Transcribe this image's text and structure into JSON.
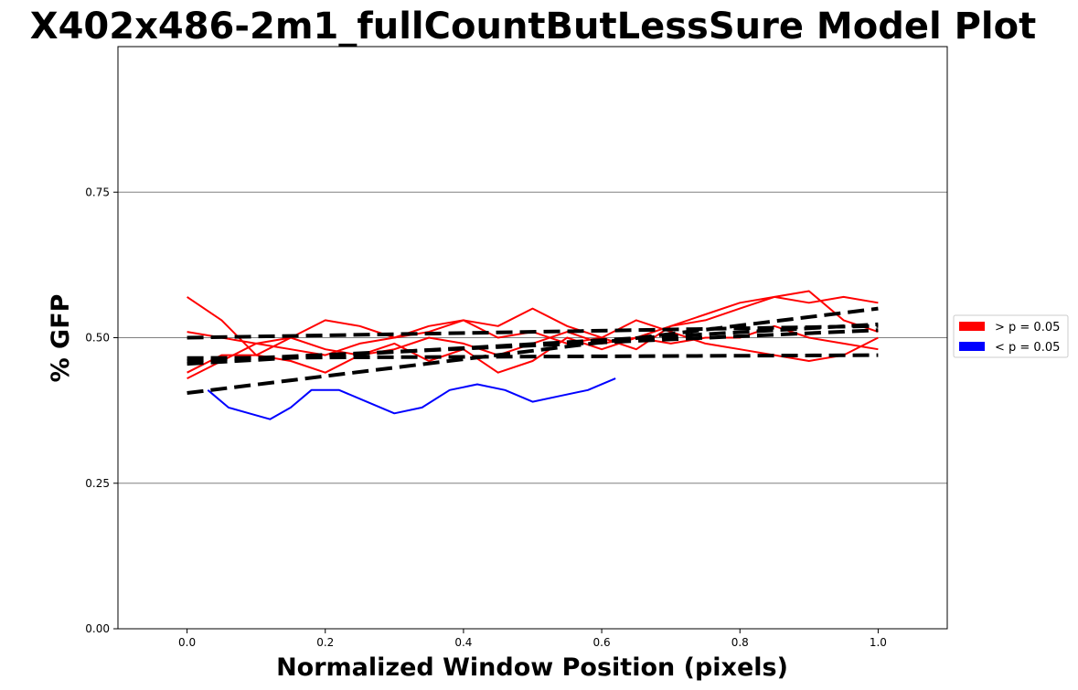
{
  "chart_data": {
    "type": "line",
    "title": "X402x486-2m1_fullCountButLessSure Model Plot",
    "xlabel": "Normalized Window Position (pixels)",
    "ylabel": "% GFP",
    "xlim": [
      -0.1,
      1.1
    ],
    "ylim": [
      0.0,
      1.0
    ],
    "xticks": [
      0.0,
      0.2,
      0.4,
      0.6,
      0.8,
      1.0
    ],
    "xtick_labels": [
      "0.0",
      "0.2",
      "0.4",
      "0.6",
      "0.8",
      "1.0"
    ],
    "yticks": [
      0.0,
      0.25,
      0.5,
      0.75
    ],
    "ytick_labels": [
      "0.00",
      "0.25",
      "0.50",
      "0.75"
    ],
    "grid": "horizontal",
    "legend": {
      "placement": "right",
      "entries": [
        {
          "label": "> p = 0.05",
          "color": "#ff0000"
        },
        {
          "label": "< p = 0.05",
          "color": "#0000ff"
        }
      ]
    },
    "series": [
      {
        "color": "#ff0000",
        "x": [
          0.0,
          0.05,
          0.1,
          0.15,
          0.2,
          0.25,
          0.3,
          0.35,
          0.4,
          0.45,
          0.5,
          0.55,
          0.6,
          0.65,
          0.7,
          0.75,
          0.8,
          0.85,
          0.9,
          0.95,
          1.0
        ],
        "y": [
          0.51,
          0.5,
          0.49,
          0.5,
          0.53,
          0.52,
          0.5,
          0.51,
          0.53,
          0.52,
          0.55,
          0.52,
          0.5,
          0.53,
          0.51,
          0.49,
          0.48,
          0.47,
          0.46,
          0.47,
          0.5
        ]
      },
      {
        "color": "#ff0000",
        "x": [
          0.0,
          0.05,
          0.1,
          0.15,
          0.2,
          0.25,
          0.3,
          0.35,
          0.4,
          0.45,
          0.5,
          0.55,
          0.6,
          0.65,
          0.7,
          0.75,
          0.8,
          0.85,
          0.9,
          0.95,
          1.0
        ],
        "y": [
          0.57,
          0.53,
          0.47,
          0.5,
          0.48,
          0.47,
          0.48,
          0.5,
          0.49,
          0.47,
          0.49,
          0.51,
          0.49,
          0.5,
          0.52,
          0.53,
          0.55,
          0.57,
          0.56,
          0.57,
          0.56
        ]
      },
      {
        "color": "#ff0000",
        "x": [
          0.0,
          0.05,
          0.1,
          0.15,
          0.2,
          0.25,
          0.3,
          0.35,
          0.4,
          0.45,
          0.5,
          0.55,
          0.6,
          0.65,
          0.7,
          0.75,
          0.8,
          0.85,
          0.9,
          0.95,
          1.0
        ],
        "y": [
          0.44,
          0.47,
          0.47,
          0.46,
          0.44,
          0.47,
          0.49,
          0.46,
          0.48,
          0.44,
          0.46,
          0.5,
          0.48,
          0.5,
          0.49,
          0.5,
          0.5,
          0.52,
          0.5,
          0.49,
          0.48
        ]
      },
      {
        "color": "#ff0000",
        "x": [
          0.0,
          0.05,
          0.1,
          0.15,
          0.2,
          0.25,
          0.3,
          0.35,
          0.4,
          0.45,
          0.5,
          0.55,
          0.6,
          0.65,
          0.7,
          0.75,
          0.8,
          0.85,
          0.9,
          0.95,
          1.0
        ],
        "y": [
          0.43,
          0.46,
          0.49,
          0.48,
          0.47,
          0.49,
          0.5,
          0.52,
          0.53,
          0.5,
          0.51,
          0.49,
          0.5,
          0.48,
          0.52,
          0.54,
          0.56,
          0.57,
          0.58,
          0.53,
          0.51
        ]
      },
      {
        "color": "#0000ff",
        "x": [
          0.03,
          0.06,
          0.09,
          0.12,
          0.15,
          0.18,
          0.22,
          0.26,
          0.3,
          0.34,
          0.38,
          0.42,
          0.46,
          0.5,
          0.54,
          0.58,
          0.62
        ],
        "y": [
          0.41,
          0.38,
          0.37,
          0.36,
          0.38,
          0.41,
          0.41,
          0.39,
          0.37,
          0.38,
          0.41,
          0.42,
          0.41,
          0.39,
          0.4,
          0.41,
          0.43
        ]
      }
    ],
    "fits": [
      {
        "color": "#000000",
        "style": "dashed",
        "x": [
          0.0,
          1.0
        ],
        "y": [
          0.5,
          0.52
        ]
      },
      {
        "color": "#000000",
        "style": "dashed",
        "x": [
          0.0,
          1.0
        ],
        "y": [
          0.455,
          0.523
        ]
      },
      {
        "color": "#000000",
        "style": "dashed",
        "x": [
          0.0,
          1.0
        ],
        "y": [
          0.405,
          0.55
        ]
      },
      {
        "color": "#000000",
        "style": "dashed",
        "x": [
          0.0,
          1.0
        ],
        "y": [
          0.465,
          0.47
        ]
      },
      {
        "color": "#000000",
        "style": "dashed",
        "x": [
          0.0,
          1.0
        ],
        "y": [
          0.46,
          0.513
        ]
      }
    ]
  }
}
